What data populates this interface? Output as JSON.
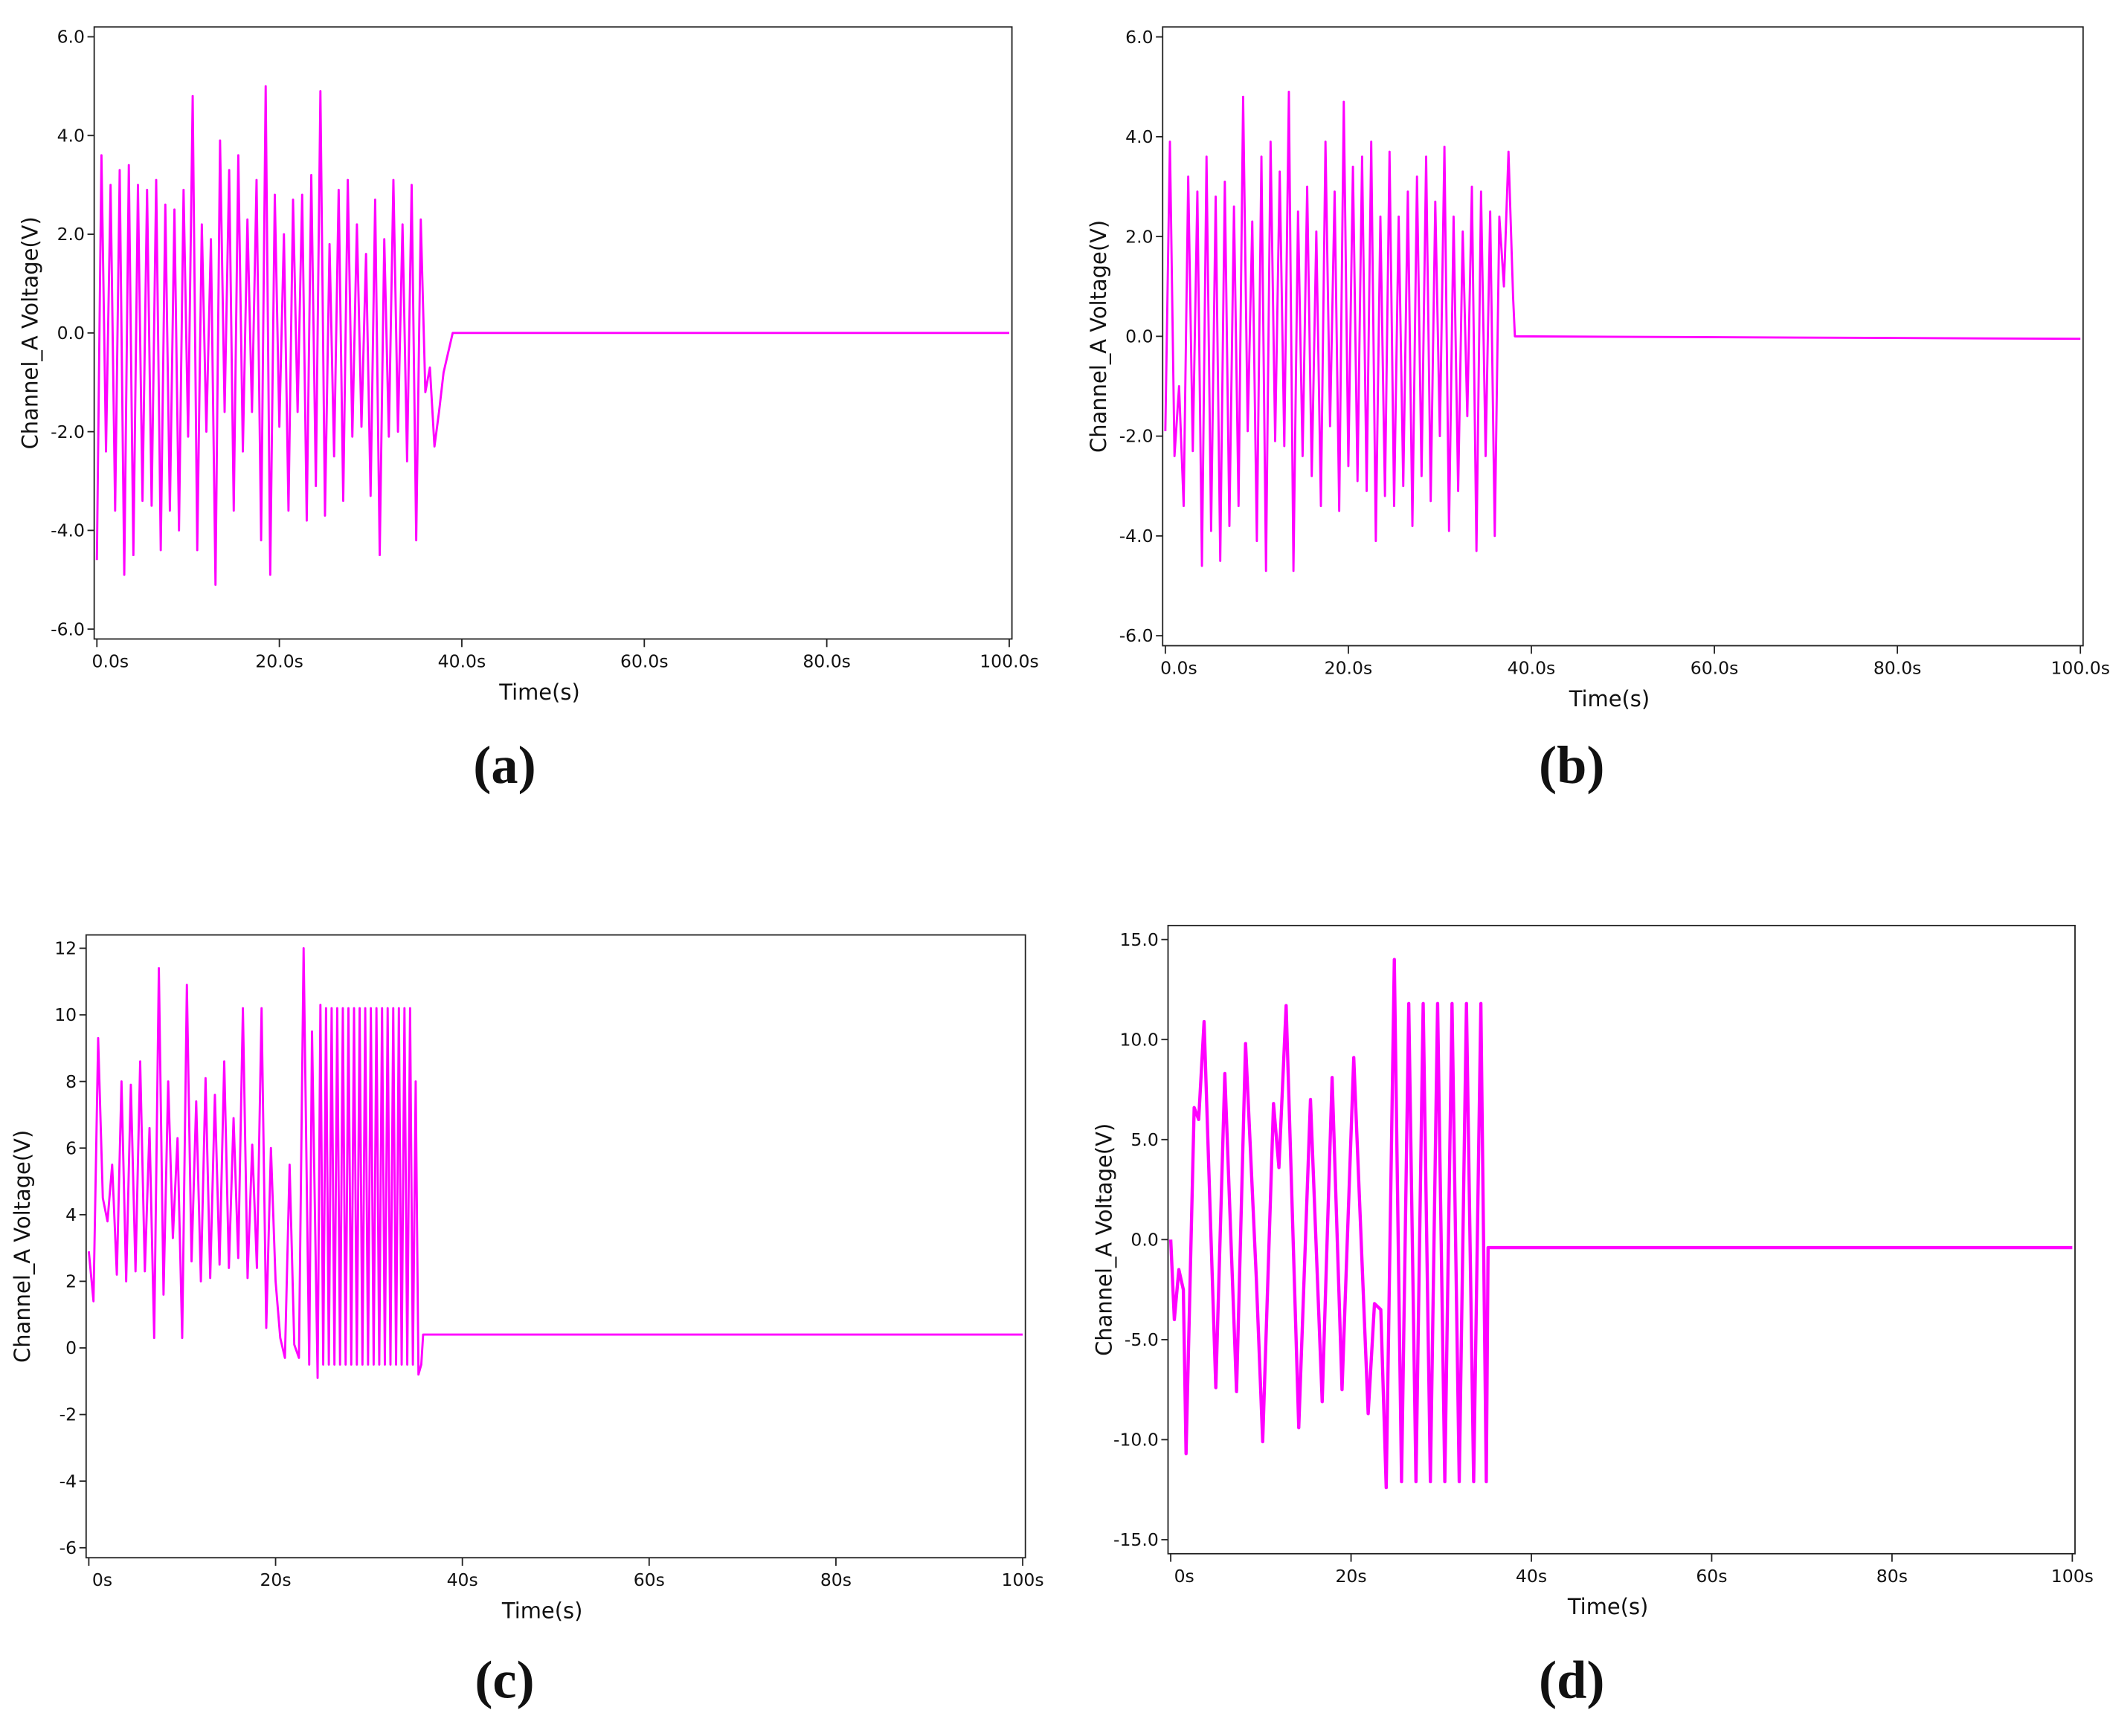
{
  "chart_data": [
    {
      "type": "line",
      "label": "(a)",
      "xlabel": "Time(s)",
      "ylabel": "Channel_A Voltage(V)",
      "color": "#ff00ff",
      "xlim": [
        0,
        100
      ],
      "ylim": [
        -6.2,
        6.2
      ],
      "xticks": [
        {
          "value": 0,
          "label": "0.0s"
        },
        {
          "value": 20,
          "label": "20.0s"
        },
        {
          "value": 40,
          "label": "40.0s"
        },
        {
          "value": 60,
          "label": "60.0s"
        },
        {
          "value": 80,
          "label": "80.0s"
        },
        {
          "value": 100,
          "label": "100.0s"
        }
      ],
      "yticks": [
        {
          "value": 6,
          "label": "6.0"
        },
        {
          "value": 4,
          "label": "4.0"
        },
        {
          "value": 2,
          "label": "2.0"
        },
        {
          "value": 0,
          "label": "0.0"
        },
        {
          "value": -2,
          "label": "-2.0"
        },
        {
          "value": -4,
          "label": "-4.0"
        },
        {
          "value": -6,
          "label": "-6.0"
        }
      ],
      "x": [
        0,
        0.5,
        1,
        1.5,
        2,
        2.5,
        3,
        3.5,
        4,
        4.5,
        5,
        5.5,
        6,
        6.5,
        7,
        7.5,
        8,
        8.5,
        9,
        9.5,
        10,
        10.5,
        11,
        11.5,
        12,
        12.5,
        13,
        13.5,
        14,
        14.5,
        15,
        15.5,
        16,
        16.5,
        17,
        17.5,
        18,
        18.5,
        19,
        19.5,
        20,
        20.5,
        21,
        21.5,
        22,
        22.5,
        23,
        23.5,
        24,
        24.5,
        25,
        25.5,
        26,
        26.5,
        27,
        27.5,
        28,
        28.5,
        29,
        29.5,
        30,
        30.5,
        31,
        31.5,
        32,
        32.5,
        33,
        33.5,
        34,
        34.5,
        35,
        35.5,
        36,
        36.5,
        37,
        37.5,
        38,
        39,
        100
      ],
      "values": [
        -4.6,
        3.6,
        -2.4,
        3.0,
        -3.6,
        3.3,
        -4.9,
        3.4,
        -4.5,
        3.0,
        -3.4,
        2.9,
        -3.5,
        3.1,
        -4.4,
        2.6,
        -3.6,
        2.5,
        -4.0,
        2.9,
        -2.1,
        4.8,
        -4.4,
        2.2,
        -2.0,
        1.9,
        -5.1,
        3.9,
        -1.6,
        3.3,
        -3.6,
        3.6,
        -2.4,
        2.3,
        -1.6,
        3.1,
        -4.2,
        5.0,
        -4.9,
        2.8,
        -1.9,
        2.0,
        -3.6,
        2.7,
        -1.6,
        2.8,
        -3.8,
        3.2,
        -3.1,
        4.9,
        -3.7,
        1.8,
        -2.5,
        2.9,
        -3.4,
        3.1,
        -2.1,
        2.2,
        -1.9,
        1.6,
        -3.3,
        2.7,
        -4.5,
        1.9,
        -2.1,
        3.1,
        -2.0,
        2.2,
        -2.6,
        3.0,
        -4.2,
        2.3,
        -1.2,
        -0.7,
        -2.3,
        -1.6,
        -0.8,
        0.0,
        0.0
      ]
    },
    {
      "type": "line",
      "label": "(b)",
      "xlabel": "Time(s)",
      "ylabel": "Channel_A Voltage(V)",
      "color": "#ff00ff",
      "xlim": [
        0,
        100
      ],
      "ylim": [
        -6.2,
        6.2
      ],
      "xticks": [
        {
          "value": 0,
          "label": "0.0s"
        },
        {
          "value": 20,
          "label": "20.0s"
        },
        {
          "value": 40,
          "label": "40.0s"
        },
        {
          "value": 60,
          "label": "60.0s"
        },
        {
          "value": 80,
          "label": "80.0s"
        },
        {
          "value": 100,
          "label": "100.0s"
        }
      ],
      "yticks": [
        {
          "value": 6,
          "label": "6.0"
        },
        {
          "value": 4,
          "label": "4.0"
        },
        {
          "value": 2,
          "label": "2.0"
        },
        {
          "value": 0,
          "label": "0.0"
        },
        {
          "value": -2,
          "label": "-2.0"
        },
        {
          "value": -4,
          "label": "-4.0"
        },
        {
          "value": -6,
          "label": "-6.0"
        }
      ],
      "x": [
        0,
        0.5,
        1,
        1.5,
        2,
        2.5,
        3,
        3.5,
        4,
        4.5,
        5,
        5.5,
        6,
        6.5,
        7,
        7.5,
        8,
        8.5,
        9,
        9.5,
        10,
        10.5,
        11,
        11.5,
        12,
        12.5,
        13,
        13.5,
        14,
        14.5,
        15,
        15.5,
        16,
        16.5,
        17,
        17.5,
        18,
        18.5,
        19,
        19.5,
        20,
        20.5,
        21,
        21.5,
        22,
        22.5,
        23,
        23.5,
        24,
        24.5,
        25,
        25.5,
        26,
        26.5,
        27,
        27.5,
        28,
        28.5,
        29,
        29.5,
        30,
        30.5,
        31,
        31.5,
        32,
        32.5,
        33,
        33.5,
        34,
        34.5,
        35,
        35.5,
        36,
        36.5,
        37,
        37.5,
        38,
        38.2,
        100
      ],
      "values": [
        -1.9,
        3.9,
        -2.4,
        -1.0,
        -3.4,
        3.2,
        -2.3,
        2.9,
        -4.6,
        3.6,
        -3.9,
        2.8,
        -4.5,
        3.1,
        -3.8,
        2.6,
        -3.4,
        4.8,
        -1.9,
        2.3,
        -4.1,
        3.6,
        -4.7,
        3.9,
        -2.1,
        3.3,
        -2.2,
        4.9,
        -4.7,
        2.5,
        -2.4,
        3.0,
        -2.8,
        2.1,
        -3.4,
        3.9,
        -1.8,
        2.9,
        -3.5,
        4.7,
        -2.6,
        3.4,
        -2.9,
        3.6,
        -3.1,
        3.9,
        -4.1,
        2.4,
        -3.2,
        3.7,
        -3.4,
        2.4,
        -3.0,
        2.9,
        -3.8,
        3.2,
        -2.8,
        3.6,
        -3.3,
        2.7,
        -2.0,
        3.8,
        -3.9,
        2.4,
        -3.1,
        2.1,
        -1.6,
        3.0,
        -4.3,
        2.9,
        -2.4,
        2.5,
        -4.0,
        2.4,
        1.0,
        3.7,
        0.8,
        0.0,
        -0.05
      ]
    },
    {
      "type": "line",
      "label": "(c)",
      "xlabel": "Time(s)",
      "ylabel": "Channel_A Voltage(V)",
      "color": "#ff00ff",
      "xlim": [
        0,
        100
      ],
      "ylim": [
        -6.3,
        12.4
      ],
      "xticks": [
        {
          "value": 0,
          "label": "0s"
        },
        {
          "value": 20,
          "label": "20s"
        },
        {
          "value": 40,
          "label": "40s"
        },
        {
          "value": 60,
          "label": "60s"
        },
        {
          "value": 80,
          "label": "80s"
        },
        {
          "value": 100,
          "label": "100s"
        }
      ],
      "yticks": [
        12,
        10,
        8,
        6,
        4,
        2,
        0,
        -2,
        -4,
        -6
      ],
      "x": [
        0,
        0.5,
        1,
        1.5,
        2,
        2.5,
        3,
        3.5,
        4,
        4.5,
        5,
        5.5,
        6,
        6.5,
        7,
        7.5,
        8,
        8.5,
        9,
        9.5,
        10,
        10.5,
        11,
        11.5,
        12,
        12.5,
        13,
        13.5,
        14,
        14.5,
        15,
        15.5,
        16,
        16.5,
        17,
        17.5,
        18,
        18.5,
        19,
        19.5,
        20,
        20.5,
        21,
        21.5,
        22,
        22.5,
        23,
        23.6,
        23.9,
        24.5,
        24.8,
        25.1,
        25.4,
        25.7,
        26.0,
        26.3,
        26.6,
        26.9,
        27.2,
        27.5,
        27.8,
        28.1,
        28.4,
        28.7,
        29.0,
        29.3,
        29.6,
        29.9,
        30.2,
        30.5,
        30.8,
        31.1,
        31.4,
        31.7,
        32.0,
        32.3,
        32.6,
        32.9,
        33.2,
        33.5,
        33.8,
        34.1,
        34.4,
        34.7,
        35.0,
        35.3,
        35.6,
        35.8,
        100
      ],
      "values": [
        2.9,
        1.4,
        9.3,
        4.5,
        3.8,
        5.5,
        2.2,
        8.0,
        2.0,
        7.9,
        2.3,
        8.6,
        2.3,
        6.6,
        0.3,
        11.4,
        1.6,
        8.0,
        3.3,
        6.3,
        0.3,
        10.9,
        2.6,
        7.4,
        2.0,
        8.1,
        2.1,
        7.6,
        2.5,
        8.6,
        2.4,
        6.9,
        2.7,
        10.2,
        2.1,
        6.1,
        2.4,
        10.2,
        0.6,
        6.0,
        2.0,
        0.3,
        -0.3,
        5.5,
        0.1,
        -0.3,
        12.0,
        -0.5,
        9.5,
        -0.9,
        10.3,
        -0.5,
        10.2,
        -0.5,
        10.2,
        -0.5,
        10.2,
        -0.5,
        10.2,
        -0.5,
        10.2,
        -0.5,
        10.2,
        -0.5,
        10.2,
        -0.5,
        10.2,
        -0.5,
        10.2,
        -0.5,
        10.2,
        -0.5,
        10.2,
        -0.5,
        10.2,
        -0.5,
        10.2,
        -0.5,
        10.2,
        -0.5,
        10.2,
        -0.5,
        10.2,
        -0.5,
        8.0,
        -0.8,
        -0.5,
        0.4,
        0.4
      ]
    },
    {
      "type": "line",
      "label": "(d)",
      "xlabel": "Time(s)",
      "ylabel": "Channel_A Voltage(V)",
      "color": "#ff00ff",
      "xlim": [
        0,
        100
      ],
      "ylim": [
        -15.7,
        15.7
      ],
      "xticks": [
        {
          "value": 0,
          "label": "0s"
        },
        {
          "value": 20,
          "label": "20s"
        },
        {
          "value": 40,
          "label": "40s"
        },
        {
          "value": 60,
          "label": "60s"
        },
        {
          "value": 80,
          "label": "80s"
        },
        {
          "value": 100,
          "label": "100s"
        }
      ],
      "yticks": [
        {
          "value": 15,
          "label": "15.0"
        },
        {
          "value": 10,
          "label": "10.0"
        },
        {
          "value": 5,
          "label": "5.0"
        },
        {
          "value": 0,
          "label": "0.0"
        },
        {
          "value": -5,
          "label": "-5.0"
        },
        {
          "value": -10,
          "label": "-10.0"
        },
        {
          "value": -15,
          "label": "-15.0"
        }
      ],
      "x": [
        0,
        0.4,
        0.9,
        1.4,
        1.7,
        2.6,
        3.1,
        3.7,
        5.0,
        6.0,
        7.3,
        8.3,
        9.5,
        10.2,
        11.4,
        12.0,
        12.8,
        14.2,
        15.5,
        16.8,
        17.9,
        19.0,
        20.3,
        21.9,
        22.6,
        23.3,
        23.9,
        24.8,
        25.6,
        26.4,
        27.2,
        28.0,
        28.8,
        29.6,
        30.4,
        31.2,
        32.0,
        32.8,
        33.6,
        34.4,
        35.0,
        35.2,
        100
      ],
      "values": [
        0.0,
        -4.0,
        -1.5,
        -2.5,
        -10.7,
        6.6,
        6.0,
        10.9,
        -7.4,
        8.3,
        -7.6,
        9.8,
        -2.0,
        -10.1,
        6.8,
        3.6,
        11.7,
        -9.4,
        7.0,
        -8.1,
        8.1,
        -7.5,
        9.1,
        -8.7,
        -3.2,
        -3.5,
        -12.4,
        14.0,
        -12.1,
        11.8,
        -12.1,
        11.8,
        -12.1,
        11.8,
        -12.1,
        11.8,
        -12.1,
        11.8,
        -12.1,
        11.8,
        -12.1,
        -0.4,
        -0.4
      ]
    }
  ]
}
